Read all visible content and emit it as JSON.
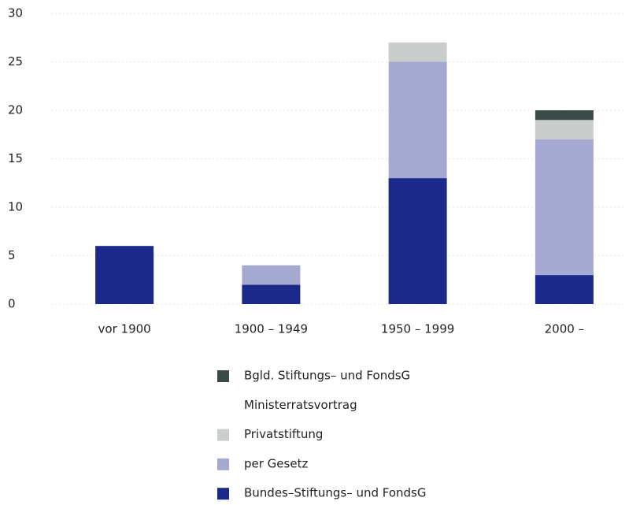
{
  "chart_data": {
    "type": "stacked_bar",
    "categories": [
      "vor 1900",
      "1900 – 1949",
      "1950 – 1999",
      "2000 –"
    ],
    "series": [
      {
        "name": "Bundes–Stiftungs– und FondsG",
        "color": "#1b2a8a",
        "values": [
          6,
          2,
          13,
          3
        ]
      },
      {
        "name": "per Gesetz",
        "color": "#a5a9d1",
        "values": [
          0,
          2,
          12,
          14
        ]
      },
      {
        "name": "Privatstiftung",
        "color": "#c9cdcc",
        "values": [
          0,
          0,
          2,
          2
        ]
      },
      {
        "name": "Ministerratsvortrag",
        "color": "#ffffff",
        "values": [
          0,
          0,
          0,
          0
        ]
      },
      {
        "name": "Bgld. Stiftungs– und FondsG",
        "color": "#3b4a47",
        "values": [
          0,
          0,
          0,
          1
        ]
      }
    ],
    "ylim": [
      0,
      30
    ],
    "yticks": [
      0,
      5,
      10,
      15,
      20,
      25,
      30
    ],
    "grid": true
  }
}
